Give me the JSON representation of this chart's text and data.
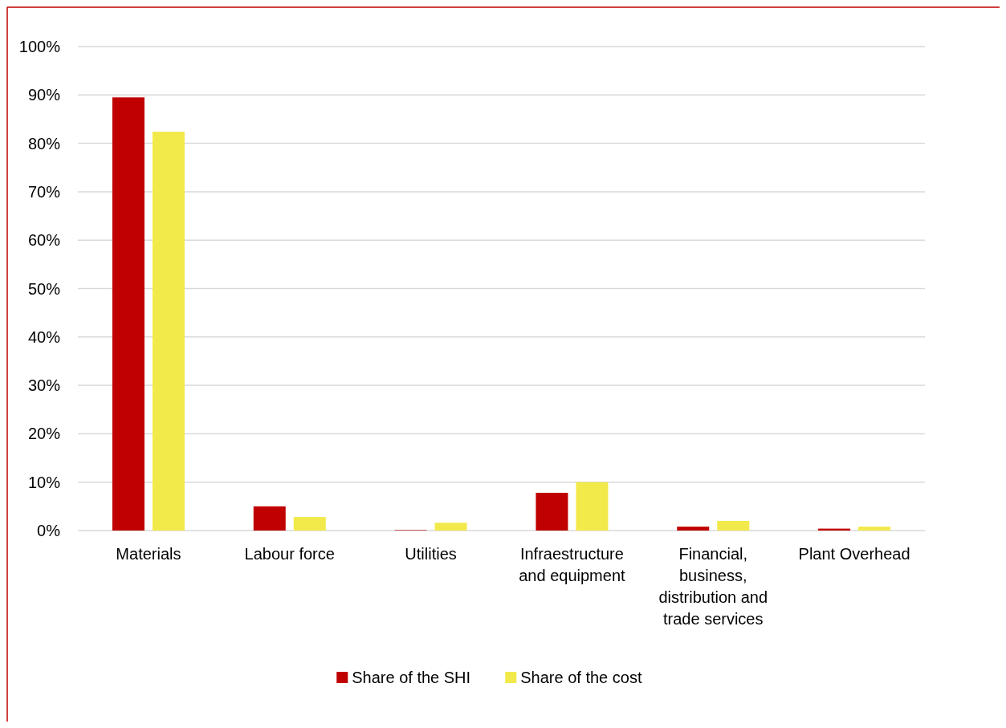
{
  "chart_data": {
    "type": "bar",
    "categories": [
      "Materials",
      "Labour force",
      "Utilities",
      "Infraestructure and equipment",
      "Financial, business, distribution and trade services",
      "Plant Overhead"
    ],
    "series": [
      {
        "name": "Share of the SHI",
        "color": "#c00000",
        "values": [
          89.5,
          5.0,
          0.1,
          7.8,
          0.8,
          0.4
        ]
      },
      {
        "name": "Share of the cost",
        "color": "#f2ea4a",
        "values": [
          82.4,
          2.8,
          1.6,
          10.0,
          2.0,
          0.8
        ]
      }
    ],
    "ylim": [
      0,
      100
    ],
    "yticks": [
      {
        "value": 0,
        "label": "0%"
      },
      {
        "value": 10,
        "label": "10%"
      },
      {
        "value": 20,
        "label": "20%"
      },
      {
        "value": 30,
        "label": "30%"
      },
      {
        "value": 40,
        "label": "40%"
      },
      {
        "value": 50,
        "label": "50%"
      },
      {
        "value": 60,
        "label": "60%"
      },
      {
        "value": 70,
        "label": "70%"
      },
      {
        "value": 80,
        "label": "80%"
      },
      {
        "value": 90,
        "label": "90%"
      },
      {
        "value": 100,
        "label": "100%"
      }
    ],
    "grid": "y",
    "legend": "bottom"
  }
}
